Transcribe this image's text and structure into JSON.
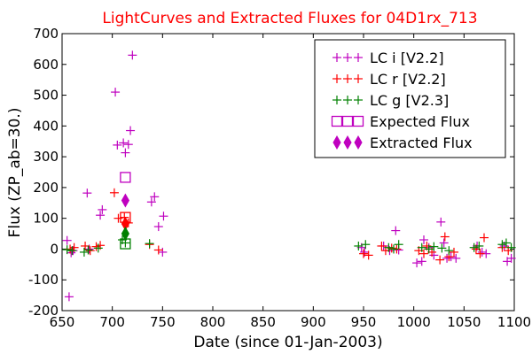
{
  "chart_data": {
    "type": "scatter",
    "title": "LightCurves and Extracted Fluxes for 04D1rx_713",
    "title_color": "#ff0000",
    "xlabel": "Date (since 01-Jan-2003)",
    "ylabel": "Flux (ZP_ab=30.)",
    "xlim": [
      650,
      1100
    ],
    "ylim": [
      -200,
      700
    ],
    "xticks": [
      650,
      700,
      750,
      800,
      850,
      900,
      950,
      1000,
      1050,
      1100
    ],
    "yticks": [
      -200,
      -100,
      0,
      100,
      200,
      300,
      400,
      500,
      600,
      700
    ],
    "legend_position": "top-right",
    "grid": false,
    "series": [
      {
        "name": "LC i [V2.2]",
        "marker": "plus",
        "color": "#bf00bf",
        "points": [
          [
            655,
            28
          ],
          [
            657,
            -155
          ],
          [
            659,
            -12
          ],
          [
            661,
            -5
          ],
          [
            675,
            182
          ],
          [
            677,
            0
          ],
          [
            688,
            110
          ],
          [
            690,
            128
          ],
          [
            703,
            510
          ],
          [
            705,
            338
          ],
          [
            711,
            345
          ],
          [
            713,
            313
          ],
          [
            716,
            340
          ],
          [
            718,
            385
          ],
          [
            720,
            630
          ],
          [
            739,
            153
          ],
          [
            742,
            170
          ],
          [
            746,
            73
          ],
          [
            751,
            107
          ],
          [
            750,
            -10
          ],
          [
            948,
            5
          ],
          [
            951,
            -10
          ],
          [
            970,
            10
          ],
          [
            976,
            -5
          ],
          [
            982,
            60
          ],
          [
            985,
            -3
          ],
          [
            1003,
            -45
          ],
          [
            1008,
            -40
          ],
          [
            1010,
            30
          ],
          [
            1015,
            5
          ],
          [
            1020,
            -20
          ],
          [
            1027,
            88
          ],
          [
            1030,
            20
          ],
          [
            1033,
            -30
          ],
          [
            1037,
            -25
          ],
          [
            1042,
            -30
          ],
          [
            1063,
            10
          ],
          [
            1068,
            -10
          ],
          [
            1072,
            -15
          ],
          [
            1090,
            10
          ],
          [
            1093,
            -40
          ],
          [
            1097,
            -30
          ]
        ]
      },
      {
        "name": "LC r [V2.2]",
        "marker": "plus",
        "color": "#ff0000",
        "points": [
          [
            658,
            0
          ],
          [
            662,
            5
          ],
          [
            673,
            10
          ],
          [
            678,
            -5
          ],
          [
            684,
            8
          ],
          [
            688,
            12
          ],
          [
            702,
            183
          ],
          [
            706,
            100
          ],
          [
            712,
            103
          ],
          [
            716,
            85
          ],
          [
            737,
            15
          ],
          [
            746,
            -3
          ],
          [
            950,
            -15
          ],
          [
            955,
            -20
          ],
          [
            968,
            10
          ],
          [
            972,
            -5
          ],
          [
            978,
            3
          ],
          [
            983,
            0
          ],
          [
            1005,
            -5
          ],
          [
            1010,
            -15
          ],
          [
            1013,
            10
          ],
          [
            1018,
            -10
          ],
          [
            1026,
            -35
          ],
          [
            1031,
            40
          ],
          [
            1035,
            -25
          ],
          [
            1040,
            -10
          ],
          [
            1062,
            0
          ],
          [
            1066,
            -15
          ],
          [
            1070,
            37
          ],
          [
            1088,
            5
          ],
          [
            1094,
            -5
          ]
        ]
      },
      {
        "name": "LC g [V2.3]",
        "marker": "plus",
        "color": "#008000",
        "points": [
          [
            655,
            -2
          ],
          [
            660,
            -5
          ],
          [
            672,
            -10
          ],
          [
            676,
            -3
          ],
          [
            686,
            3
          ],
          [
            710,
            30
          ],
          [
            713,
            20
          ],
          [
            737,
            18
          ],
          [
            945,
            10
          ],
          [
            952,
            15
          ],
          [
            975,
            5
          ],
          [
            980,
            0
          ],
          [
            985,
            15
          ],
          [
            1008,
            5
          ],
          [
            1015,
            0
          ],
          [
            1020,
            8
          ],
          [
            1028,
            3
          ],
          [
            1035,
            -5
          ],
          [
            1060,
            5
          ],
          [
            1065,
            10
          ],
          [
            1088,
            15
          ],
          [
            1092,
            20
          ],
          [
            1097,
            5
          ]
        ]
      },
      {
        "name": "Expected Flux",
        "marker": "square-open",
        "color": "#bf00bf",
        "extra_colors": [
          "#ff0000",
          "#008000"
        ],
        "points": [
          [
            713,
            233,
            "#bf00bf"
          ],
          [
            713,
            103,
            "#ff0000"
          ],
          [
            713,
            17,
            "#008000"
          ]
        ]
      },
      {
        "name": "Extracted Flux",
        "marker": "diamond",
        "color": "#bf00bf",
        "extra_colors": [
          "#ff0000",
          "#008000"
        ],
        "points": [
          [
            713,
            158,
            "#bf00bf"
          ],
          [
            713,
            82,
            "#ff0000"
          ],
          [
            713,
            50,
            "#008000"
          ]
        ]
      }
    ]
  }
}
